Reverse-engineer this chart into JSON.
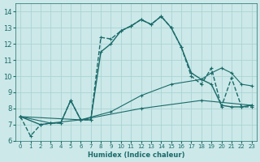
{
  "xlabel": "Humidex (Indice chaleur)",
  "bg_color": "#cce8e8",
  "grid_color": "#aad4d4",
  "line_color": "#1a6b6b",
  "xlim": [
    -0.5,
    23.5
  ],
  "ylim": [
    6,
    14.5
  ],
  "xticks": [
    0,
    1,
    2,
    3,
    4,
    5,
    6,
    7,
    8,
    9,
    10,
    11,
    12,
    13,
    14,
    15,
    16,
    17,
    18,
    19,
    20,
    21,
    22,
    23
  ],
  "yticks": [
    6,
    7,
    8,
    9,
    10,
    11,
    12,
    13,
    14
  ],
  "series": [
    {
      "x": [
        0,
        1,
        2,
        3,
        4,
        5,
        6,
        7,
        8,
        9,
        10,
        11,
        12,
        13,
        14,
        15,
        16,
        17,
        18,
        19,
        20,
        21,
        22,
        23
      ],
      "y": [
        7.5,
        6.3,
        7.0,
        7.1,
        7.1,
        8.5,
        7.3,
        7.3,
        12.4,
        12.3,
        12.8,
        13.1,
        13.5,
        13.2,
        13.7,
        13.0,
        11.8,
        10.0,
        9.5,
        10.5,
        8.1,
        9.9,
        8.1,
        8.1
      ],
      "linestyle": "--",
      "linewidth": 1.0,
      "marker": "+"
    },
    {
      "x": [
        0,
        2,
        3,
        4,
        5,
        6,
        7,
        8,
        9,
        10,
        11,
        12,
        13,
        14,
        15,
        16,
        17,
        18,
        19,
        20,
        21,
        22,
        23
      ],
      "y": [
        7.5,
        7.0,
        7.1,
        7.1,
        8.5,
        7.3,
        7.3,
        11.5,
        12.0,
        12.8,
        13.1,
        13.5,
        13.2,
        13.7,
        13.0,
        11.8,
        10.2,
        9.8,
        9.5,
        8.2,
        8.1,
        8.1,
        8.2
      ],
      "linestyle": "-",
      "linewidth": 1.0,
      "marker": "+"
    },
    {
      "x": [
        0,
        3,
        6,
        9,
        12,
        15,
        18,
        19,
        20,
        21,
        22,
        23
      ],
      "y": [
        7.5,
        7.1,
        7.3,
        7.8,
        8.8,
        9.5,
        9.8,
        10.2,
        10.5,
        10.2,
        9.5,
        9.4
      ],
      "linestyle": "-",
      "linewidth": 0.8,
      "marker": "+"
    },
    {
      "x": [
        0,
        6,
        12,
        18,
        23
      ],
      "y": [
        7.5,
        7.3,
        8.0,
        8.5,
        8.2
      ],
      "linestyle": "-",
      "linewidth": 0.8,
      "marker": "+"
    }
  ]
}
